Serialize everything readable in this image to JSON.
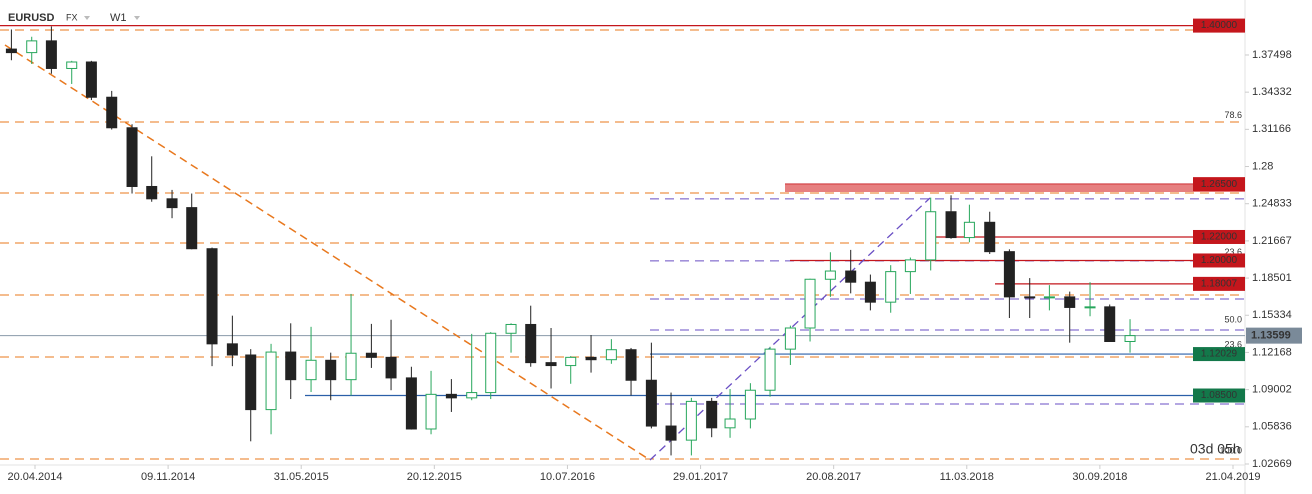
{
  "chart_data": {
    "type": "candlestick",
    "symbol": "EURUSD",
    "market": "FX",
    "timeframe": "W1",
    "timer": "03d 05h",
    "x": [
      "2014-03",
      "2014-04",
      "2014-05",
      "2014-06",
      "2014-07",
      "2014-08",
      "2014-09",
      "2014-10",
      "2014-11",
      "2014-12",
      "2015-01",
      "2015-02",
      "2015-03",
      "2015-04",
      "2015-05",
      "2015-06",
      "2015-07",
      "2015-08",
      "2015-09",
      "2015-10",
      "2015-11",
      "2015-12",
      "2016-01",
      "2016-02",
      "2016-03",
      "2016-04",
      "2016-05",
      "2016-06",
      "2016-07",
      "2016-08",
      "2016-09",
      "2016-10",
      "2016-11",
      "2016-12",
      "2017-01",
      "2017-02",
      "2017-03",
      "2017-04",
      "2017-05",
      "2017-06",
      "2017-07",
      "2017-08",
      "2017-09",
      "2017-10",
      "2017-11",
      "2017-12",
      "2018-01",
      "2018-02",
      "2018-03",
      "2018-04",
      "2018-05",
      "2018-06",
      "2018-07",
      "2018-08",
      "2018-09",
      "2018-10",
      "2018-11"
    ],
    "open": [
      1.38,
      1.377,
      1.387,
      1.3635,
      1.369,
      1.339,
      1.313,
      1.263,
      1.2525,
      1.245,
      1.21,
      1.129,
      1.1195,
      1.073,
      1.122,
      1.0985,
      1.115,
      1.0985,
      1.121,
      1.1175,
      1.1,
      1.0565,
      1.086,
      1.083,
      1.0875,
      1.138,
      1.1455,
      1.113,
      1.1105,
      1.1175,
      1.1155,
      1.124,
      1.098,
      1.059,
      1.047,
      1.08,
      1.0575,
      1.065,
      1.0895,
      1.1245,
      1.1425,
      1.184,
      1.191,
      1.1815,
      1.1645,
      1.1905,
      1.2005,
      1.2415,
      1.2195,
      1.2325,
      1.2075,
      1.169,
      1.1685,
      1.169,
      1.16,
      1.1605,
      1.131
    ],
    "high": [
      1.3967,
      1.3905,
      1.3993,
      1.37,
      1.37,
      1.3444,
      1.316,
      1.2887,
      1.2601,
      1.257,
      1.211,
      1.153,
      1.1245,
      1.129,
      1.1465,
      1.1435,
      1.1215,
      1.1715,
      1.146,
      1.1495,
      1.1095,
      1.106,
      1.099,
      1.1375,
      1.139,
      1.1465,
      1.1615,
      1.1425,
      1.1185,
      1.1365,
      1.133,
      1.1255,
      1.13,
      1.0875,
      1.083,
      1.083,
      1.0905,
      1.0955,
      1.1265,
      1.1445,
      1.1845,
      1.207,
      1.209,
      1.188,
      1.196,
      1.2025,
      1.2535,
      1.2555,
      1.2475,
      1.2415,
      1.2095,
      1.185,
      1.179,
      1.1735,
      1.1815,
      1.1625,
      1.15
    ],
    "low": [
      1.3705,
      1.3673,
      1.359,
      1.3503,
      1.3366,
      1.3115,
      1.257,
      1.25,
      1.236,
      1.2095,
      1.11,
      1.11,
      1.046,
      1.052,
      1.082,
      1.088,
      1.081,
      1.085,
      1.1085,
      1.0895,
      1.056,
      1.052,
      1.071,
      1.081,
      1.082,
      1.1215,
      1.1095,
      1.091,
      1.095,
      1.1045,
      1.112,
      1.085,
      1.057,
      1.034,
      1.034,
      1.0495,
      1.049,
      1.057,
      1.084,
      1.111,
      1.131,
      1.169,
      1.172,
      1.1575,
      1.1555,
      1.1715,
      1.1915,
      1.2185,
      1.2155,
      1.2055,
      1.151,
      1.151,
      1.1575,
      1.13,
      1.1525,
      1.1335,
      1.1215
    ],
    "close": [
      1.377,
      1.387,
      1.3635,
      1.369,
      1.339,
      1.313,
      1.263,
      1.2525,
      1.245,
      1.21,
      1.129,
      1.1195,
      1.073,
      1.122,
      1.0985,
      1.115,
      1.0985,
      1.121,
      1.1175,
      1.1,
      1.0565,
      1.086,
      1.083,
      1.0875,
      1.138,
      1.1455,
      1.113,
      1.1105,
      1.1175,
      1.1155,
      1.124,
      1.098,
      1.059,
      1.047,
      1.08,
      1.0575,
      1.065,
      1.0895,
      1.1245,
      1.1425,
      1.184,
      1.191,
      1.1815,
      1.1645,
      1.1905,
      1.2005,
      1.2415,
      1.2195,
      1.2325,
      1.2075,
      1.169,
      1.1685,
      1.169,
      1.16,
      1.1605,
      1.131,
      1.136
    ],
    "up_color": "#26a65b",
    "down_color": "#222222",
    "ylim": [
      1.0088,
      1.4218
    ],
    "yticks": [
      1.37498,
      1.34332,
      1.31166,
      1.28,
      1.24833,
      1.21667,
      1.18501,
      1.15334,
      1.12168,
      1.09002,
      1.05836,
      1.02669
    ],
    "xticks": [
      {
        "value": "2014-04-20",
        "label": "20.04.2014"
      },
      {
        "value": "2014-11-09",
        "label": "09.11.2014"
      },
      {
        "value": "2015-05-31",
        "label": "31.05.2015"
      },
      {
        "value": "2015-12-20",
        "label": "20.12.2015"
      },
      {
        "value": "2016-07-10",
        "label": "10.07.2016"
      },
      {
        "value": "2017-01-29",
        "label": "29.01.2017"
      },
      {
        "value": "2017-08-20",
        "label": "20.08.2017"
      },
      {
        "value": "2018-03-11",
        "label": "11.03.2018"
      },
      {
        "value": "2018-09-30",
        "label": "30.09.2018"
      },
      {
        "value": "2019-04-21",
        "label": "21.04.2019"
      }
    ],
    "levels": [
      {
        "value": 1.4,
        "label": "1.40000",
        "color": "#c4161c"
      },
      {
        "value": 1.265,
        "label": "1.26500",
        "color": "#c4161c"
      },
      {
        "value": 1.22,
        "label": "1.22000",
        "color": "#c4161c"
      },
      {
        "value": 1.2,
        "label": "1.20000",
        "color": "#c4161c"
      },
      {
        "value": 1.18007,
        "label": "1.18007",
        "color": "#c4161c"
      },
      {
        "value": 1.12029,
        "label": "1.12029",
        "color": "#13784a"
      },
      {
        "value": 1.085,
        "label": "1.08500",
        "color": "#13784a"
      }
    ],
    "orange_levels": [
      1.3963,
      1.3179,
      1.2575,
      1.2149,
      1.1706,
      1.1178,
      1.0309
    ],
    "purple_levels": [
      1.2524,
      1.1996,
      1.1672,
      1.1408,
      1.0778
    ],
    "fib_labels": [
      {
        "price": 1.3235,
        "label": "78.6"
      },
      {
        "price": 1.2065,
        "label": "23.6"
      },
      {
        "price": 1.149,
        "label": "50.0"
      },
      {
        "price": 1.128,
        "label": "23.6"
      },
      {
        "price": 1.0375,
        "label": "100.0"
      }
    ],
    "last_price": 1.13599
  }
}
